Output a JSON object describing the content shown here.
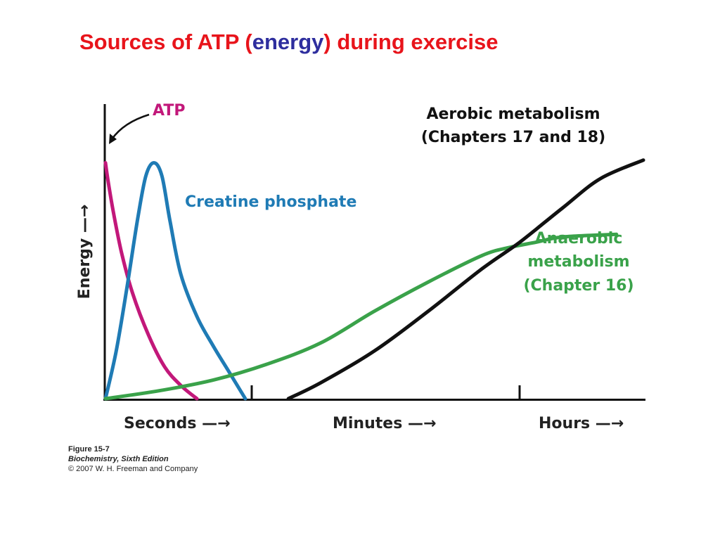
{
  "slide": {
    "title_prefix": "Sources of ATP (",
    "title_highlight": "energy",
    "title_suffix": ") during exercise",
    "title_color": "#e8141b",
    "highlight_color": "#2e2e9e"
  },
  "chart_data": {
    "type": "line",
    "ylabel": "Energy —→",
    "x_sections": [
      {
        "label": "Seconds —→"
      },
      {
        "label": "Minutes —→"
      },
      {
        "label": "Hours —→"
      }
    ],
    "xlim": [
      0,
      100
    ],
    "ylim": [
      0,
      100
    ],
    "grid": false,
    "legend": "none (inline curve labels)",
    "series": [
      {
        "key": "atp",
        "name": "ATP",
        "color": "#c2187a",
        "points": [
          [
            0,
            89
          ],
          [
            0.5,
            82
          ],
          [
            1.5,
            70
          ],
          [
            3,
            55
          ],
          [
            5,
            40
          ],
          [
            8,
            24
          ],
          [
            11,
            12
          ],
          [
            14,
            5
          ],
          [
            17,
            0
          ]
        ]
      },
      {
        "key": "cp",
        "name": "Creatine phosphate",
        "color": "#1f7bb5",
        "points": [
          [
            0,
            0
          ],
          [
            2,
            18
          ],
          [
            4,
            42
          ],
          [
            6,
            68
          ],
          [
            7.5,
            84
          ],
          [
            9,
            89
          ],
          [
            10.5,
            84
          ],
          [
            12,
            67
          ],
          [
            14,
            47
          ],
          [
            17,
            31
          ],
          [
            20,
            20
          ],
          [
            23,
            10
          ],
          [
            26,
            0
          ]
        ]
      },
      {
        "key": "anaerobic",
        "name_lines": [
          "Anaerobic",
          "metabolism",
          "(Chapter 16)"
        ],
        "color": "#3aa24a",
        "points": [
          [
            0,
            0
          ],
          [
            10,
            3
          ],
          [
            20,
            7
          ],
          [
            30,
            13
          ],
          [
            40,
            21
          ],
          [
            50,
            33
          ],
          [
            60,
            44
          ],
          [
            70,
            54
          ],
          [
            75,
            57
          ],
          [
            80,
            59
          ],
          [
            85,
            61
          ],
          [
            95,
            62
          ]
        ]
      },
      {
        "key": "aerobic",
        "name_lines": [
          "Aerobic metabolism",
          "(Chapters 17 and 18)"
        ],
        "color": "#111111",
        "points": [
          [
            34,
            0
          ],
          [
            40,
            6
          ],
          [
            50,
            18
          ],
          [
            60,
            33
          ],
          [
            70,
            49
          ],
          [
            77,
            59
          ],
          [
            85,
            72
          ],
          [
            92,
            83
          ],
          [
            100,
            90
          ]
        ]
      }
    ]
  },
  "caption": {
    "figure": "Figure 15-7",
    "book": "Biochemistry, Sixth Edition",
    "copyright": "© 2007 W. H. Freeman and Company"
  }
}
